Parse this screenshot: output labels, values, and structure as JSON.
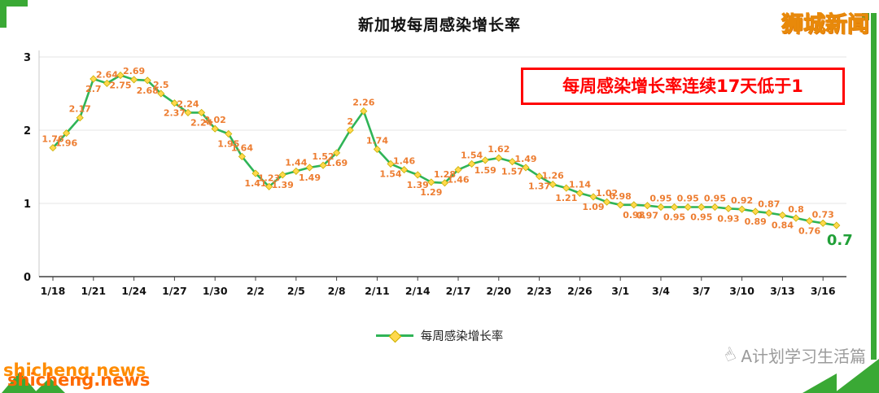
{
  "brand": {
    "logo_text": "狮城新闻"
  },
  "watermark": {
    "text": "shicheng.news"
  },
  "credit": {
    "text": "A计划学习生活篇",
    "icon": "pointing-hand-icon",
    "icon_glyph": "☝"
  },
  "colors": {
    "line_green": "#2fb457",
    "marker_yellow": "#ffd94d",
    "data_label_orange": "#ed7d31",
    "final_label_green": "#21a038",
    "annotation_red": "#ff0000",
    "frame_green": "#3aa935",
    "brand_orange": "#ffb412",
    "watermark_orange": "#ff8c00",
    "credit_gray": "#9b9b9b"
  },
  "chart_data": {
    "type": "line",
    "title": "新加坡每周感染增长率",
    "annotation": "每周感染增长率连续17天低于1",
    "legend": [
      "每周感染增长率"
    ],
    "legend_position": "bottom",
    "grid": true,
    "ylim": [
      0,
      3
    ],
    "y_tick_labels": [
      "0",
      "1",
      "2",
      "3"
    ],
    "x_start_label": "1/18",
    "x_frequency": "daily",
    "x_tick_step_days": 3,
    "x_tick_labels": [
      "1/18",
      "1/21",
      "1/24",
      "1/27",
      "1/30",
      "2/2",
      "2/5",
      "2/8",
      "2/11",
      "2/14",
      "2/17",
      "2/20",
      "2/23",
      "2/26",
      "3/1",
      "3/4",
      "3/7",
      "3/10",
      "3/13",
      "3/16"
    ],
    "points": [
      {
        "v": 1.76,
        "side": "above"
      },
      {
        "v": 1.96,
        "side": "below"
      },
      {
        "v": 2.17,
        "side": "above"
      },
      {
        "v": 2.7,
        "side": "below"
      },
      {
        "v": 2.64,
        "side": "above"
      },
      {
        "v": 2.75,
        "side": "below"
      },
      {
        "v": 2.69,
        "side": "above"
      },
      {
        "v": 2.68,
        "side": "below"
      },
      {
        "v": 2.5,
        "side": "above"
      },
      {
        "v": 2.37,
        "side": "below"
      },
      {
        "v": 2.24,
        "side": "above"
      },
      {
        "v": 2.24,
        "side": "below"
      },
      {
        "v": 2.02,
        "side": "above"
      },
      {
        "v": 1.95,
        "side": "below"
      },
      {
        "v": 1.64,
        "side": "above"
      },
      {
        "v": 1.41,
        "side": "below"
      },
      {
        "v": 1.23,
        "side": "above"
      },
      {
        "v": 1.39,
        "side": "below"
      },
      {
        "v": 1.44,
        "side": "above"
      },
      {
        "v": 1.49,
        "side": "below"
      },
      {
        "v": 1.52,
        "side": "above"
      },
      {
        "v": 1.69,
        "side": "below"
      },
      {
        "v": 2,
        "side": "above"
      },
      {
        "v": 2.26,
        "side": "above"
      },
      {
        "v": 1.74,
        "side": "above"
      },
      {
        "v": 1.54,
        "side": "below"
      },
      {
        "v": 1.46,
        "side": "above"
      },
      {
        "v": 1.39,
        "side": "below"
      },
      {
        "v": 1.29,
        "side": "below"
      },
      {
        "v": 1.28,
        "side": "above"
      },
      {
        "v": 1.46,
        "side": "below"
      },
      {
        "v": 1.54,
        "side": "above"
      },
      {
        "v": 1.59,
        "side": "below"
      },
      {
        "v": 1.62,
        "side": "above"
      },
      {
        "v": 1.57,
        "side": "below"
      },
      {
        "v": 1.49,
        "side": "above"
      },
      {
        "v": 1.37,
        "side": "below"
      },
      {
        "v": 1.26,
        "side": "above"
      },
      {
        "v": 1.21,
        "side": "below"
      },
      {
        "v": 1.14,
        "side": "above"
      },
      {
        "v": 1.09,
        "side": "below"
      },
      {
        "v": 1.02,
        "side": "above"
      },
      {
        "v": 0.98,
        "side": "above"
      },
      {
        "v": 0.98,
        "side": "below"
      },
      {
        "v": 0.97,
        "side": "below"
      },
      {
        "v": 0.95,
        "side": "above"
      },
      {
        "v": 0.95,
        "side": "below"
      },
      {
        "v": 0.95,
        "side": "above"
      },
      {
        "v": 0.95,
        "side": "below"
      },
      {
        "v": 0.95,
        "side": "above"
      },
      {
        "v": 0.93,
        "side": "below"
      },
      {
        "v": 0.92,
        "side": "above"
      },
      {
        "v": 0.89,
        "side": "below"
      },
      {
        "v": 0.87,
        "side": "above"
      },
      {
        "v": 0.84,
        "side": "below"
      },
      {
        "v": 0.8,
        "side": "above"
      },
      {
        "v": 0.76,
        "side": "below"
      },
      {
        "v": 0.73,
        "side": "above"
      },
      {
        "v": 0.7,
        "side": "below"
      }
    ]
  }
}
